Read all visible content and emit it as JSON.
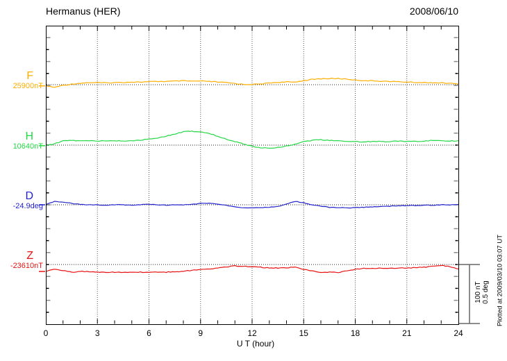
{
  "header": {
    "station_title": "Hermanus (HER)",
    "date": "2008/06/10"
  },
  "chart_data": {
    "type": "line",
    "title": "Hermanus (HER)",
    "date": "2008/06/10",
    "xlabel": "U T (hour)",
    "xlim": [
      0,
      24
    ],
    "x_ticks": [
      0,
      3,
      6,
      9,
      12,
      15,
      18,
      21,
      24
    ],
    "x_minor_tick_hours": 1,
    "grid": "dotted vertical lines every 3 hours, dotted horizontal baseline per trace",
    "legend_position": "left margin, one colored label per trace",
    "x_step_hours": 0.5,
    "scale_reference": {
      "line1": "100 nT",
      "line2": "0.5 deg"
    },
    "annotation": "Plotted at 2009/03/10 03:07 UT",
    "series": [
      {
        "name": "F",
        "base_label": "25900nT",
        "unit": "nT",
        "color": "#FFAE00",
        "deviations": [
          -2,
          -4.5,
          -1,
          1,
          2.5,
          3.5,
          3.5,
          3,
          3.5,
          4,
          4.5,
          4.5,
          5,
          5.5,
          5.5,
          6,
          6.5,
          6,
          6,
          5.5,
          4.5,
          3.5,
          2,
          0.5,
          0.5,
          1,
          3,
          4,
          4.5,
          4.5,
          7,
          9,
          10,
          10.5,
          10.5,
          9.5,
          8,
          7,
          6.5,
          6,
          5.5,
          5,
          4.5,
          4,
          3.5,
          3.5,
          3,
          2.5,
          1
        ]
      },
      {
        "name": "H",
        "base_label": "10640nT",
        "unit": "nT",
        "color": "#22D844",
        "deviations": [
          -1,
          2,
          7,
          8,
          7,
          7.5,
          7,
          7,
          7.5,
          7,
          7.5,
          8.5,
          10,
          12,
          15,
          19,
          22.5,
          23.5,
          22.5,
          20,
          15,
          10,
          6,
          2,
          -2,
          -4.5,
          -5,
          -4,
          -1.5,
          2,
          6,
          8,
          9,
          8,
          7,
          6.5,
          6,
          5.5,
          6,
          6,
          6,
          6.5,
          6.5,
          6.5,
          7,
          8,
          7,
          7,
          7.5
        ]
      },
      {
        "name": "D",
        "base_label": "-24.9deg",
        "unit": "deg",
        "color": "#2222CC",
        "deviations": [
          0,
          0.029,
          0.024,
          0.012,
          0.003,
          0,
          0,
          -0.003,
          0,
          0,
          -0.003,
          0,
          0.006,
          0,
          -0.003,
          0,
          0,
          0.003,
          0.012,
          0.015,
          0.006,
          -0.006,
          -0.018,
          -0.026,
          -0.026,
          -0.024,
          -0.021,
          -0.015,
          0.006,
          0.029,
          0.018,
          0,
          -0.012,
          -0.021,
          -0.024,
          -0.026,
          -0.024,
          -0.021,
          -0.018,
          -0.015,
          -0.012,
          -0.009,
          -0.006,
          -0.006,
          -0.003,
          -0.003,
          0,
          0,
          0.003
        ]
      },
      {
        "name": "Z",
        "base_label": "-23610nT",
        "unit": "nT",
        "color": "#E81111",
        "deviations": [
          -11.8,
          -8.2,
          -10,
          -12.9,
          -11.8,
          -12.4,
          -12.9,
          -12.9,
          -12.9,
          -13.5,
          -13.5,
          -12.9,
          -12.9,
          -12.9,
          -12.9,
          -12.4,
          -11.2,
          -10,
          -8.2,
          -7.1,
          -5.9,
          -4.1,
          -2.4,
          -2.9,
          -3.5,
          -4.7,
          -5.9,
          -5.9,
          -5.9,
          -4.1,
          -8.2,
          -11.2,
          -12.9,
          -12.9,
          -13.5,
          -11.2,
          -8.2,
          -6.5,
          -6.5,
          -6.5,
          -6.5,
          -5.9,
          -5.9,
          -5.3,
          -4.7,
          -2.9,
          -1.8,
          -3.5,
          -7.6
        ]
      }
    ]
  }
}
